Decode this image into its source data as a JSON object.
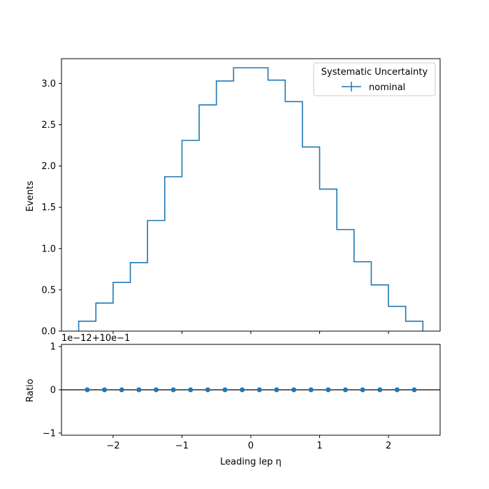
{
  "chart_data": [
    {
      "type": "histogram",
      "legend": {
        "title": "Systematic Uncertainty",
        "entries": [
          "nominal"
        ],
        "placement": "top-right"
      },
      "ylabel": "Events",
      "xlim": [
        -2.75,
        2.75
      ],
      "ylim": [
        0,
        3.3
      ],
      "yticks": [
        "0.0",
        "0.5",
        "1.0",
        "1.5",
        "2.0",
        "2.5",
        "3.0"
      ],
      "yticks_values": [
        0,
        0.5,
        1.0,
        1.5,
        2.0,
        2.5,
        3.0
      ],
      "bin_edges": [
        -2.5,
        -2.25,
        -2.0,
        -1.75,
        -1.5,
        -1.25,
        -1.0,
        -0.75,
        -0.5,
        -0.25,
        0.0,
        0.25,
        0.5,
        0.75,
        1.0,
        1.25,
        1.5,
        1.75,
        2.0,
        2.25,
        2.5
      ],
      "series": [
        {
          "name": "nominal",
          "color": "#1f77b4",
          "values": [
            0.12,
            0.34,
            0.59,
            0.83,
            1.34,
            1.87,
            2.31,
            2.74,
            3.03,
            3.19,
            3.19,
            3.04,
            2.78,
            2.23,
            1.72,
            1.23,
            0.84,
            0.56,
            0.3,
            0.12
          ]
        }
      ]
    },
    {
      "type": "scatter",
      "ylabel": "Ratio",
      "xlabel": "Leading lep η",
      "offset_text": "1e−12+10e−1",
      "xlim": [
        -2.75,
        2.75
      ],
      "ylim": [
        -1.05,
        1.05
      ],
      "xticks": [
        "−2",
        "−1",
        "0",
        "1",
        "2"
      ],
      "xticks_values": [
        -2,
        -1,
        0,
        1,
        2
      ],
      "yticks": [
        "−1",
        "0",
        "1"
      ],
      "yticks_values": [
        -1,
        0,
        1
      ],
      "reference_line": 0,
      "series": [
        {
          "color": "#1f77b4",
          "x": [
            -2.375,
            -2.125,
            -1.875,
            -1.625,
            -1.375,
            -1.125,
            -0.875,
            -0.625,
            -0.375,
            -0.125,
            0.125,
            0.375,
            0.625,
            0.875,
            1.125,
            1.375,
            1.625,
            1.875,
            2.125,
            2.375
          ],
          "y": [
            0,
            0,
            0,
            0,
            0,
            0,
            0,
            0,
            0,
            0,
            0,
            0,
            0,
            0,
            0,
            0,
            0,
            0,
            0,
            0
          ]
        }
      ]
    }
  ]
}
